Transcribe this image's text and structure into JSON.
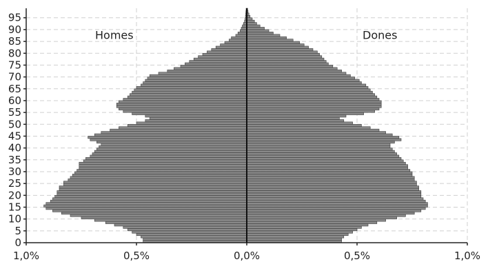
{
  "chart_data": {
    "type": "bar",
    "orientation": "horizontal-pyramid",
    "title": "",
    "xlabel": "",
    "ylabel": "",
    "xlim": [
      -1.0,
      1.0
    ],
    "ylim": [
      0,
      99
    ],
    "x_ticks": [
      "1,0%",
      "0,5%",
      "0,0%",
      "0,5%",
      "1,0%"
    ],
    "y_ticks": [
      "0",
      "5",
      "10",
      "15",
      "20",
      "25",
      "30",
      "35",
      "40",
      "45",
      "50",
      "55",
      "60",
      "65",
      "70",
      "75",
      "80",
      "85",
      "90",
      "95"
    ],
    "grid": true,
    "bar_color": "#8a8a8a",
    "ages": [
      0,
      1,
      2,
      3,
      4,
      5,
      6,
      7,
      8,
      9,
      10,
      11,
      12,
      13,
      14,
      15,
      16,
      17,
      18,
      19,
      20,
      21,
      22,
      23,
      24,
      25,
      26,
      27,
      28,
      29,
      30,
      31,
      32,
      33,
      34,
      35,
      36,
      37,
      38,
      39,
      40,
      41,
      42,
      43,
      44,
      45,
      46,
      47,
      48,
      49,
      50,
      51,
      52,
      53,
      54,
      55,
      56,
      57,
      58,
      59,
      60,
      61,
      62,
      63,
      64,
      65,
      66,
      67,
      68,
      69,
      70,
      71,
      72,
      73,
      74,
      75,
      76,
      77,
      78,
      79,
      80,
      81,
      82,
      83,
      84,
      85,
      86,
      87,
      88,
      89,
      90,
      91,
      92,
      93,
      94,
      95,
      96,
      97,
      98
    ],
    "series": [
      {
        "name": "Homes",
        "values": [
          0.47,
          0.47,
          0.48,
          0.5,
          0.52,
          0.54,
          0.56,
          0.6,
          0.64,
          0.69,
          0.75,
          0.8,
          0.84,
          0.88,
          0.91,
          0.92,
          0.91,
          0.89,
          0.88,
          0.87,
          0.86,
          0.86,
          0.85,
          0.85,
          0.83,
          0.83,
          0.81,
          0.8,
          0.79,
          0.78,
          0.77,
          0.76,
          0.76,
          0.76,
          0.74,
          0.73,
          0.71,
          0.7,
          0.69,
          0.68,
          0.67,
          0.66,
          0.68,
          0.71,
          0.72,
          0.69,
          0.66,
          0.62,
          0.58,
          0.54,
          0.5,
          0.46,
          0.44,
          0.46,
          0.52,
          0.56,
          0.58,
          0.59,
          0.59,
          0.58,
          0.56,
          0.54,
          0.53,
          0.52,
          0.51,
          0.5,
          0.48,
          0.47,
          0.46,
          0.45,
          0.44,
          0.4,
          0.36,
          0.33,
          0.3,
          0.28,
          0.26,
          0.24,
          0.22,
          0.2,
          0.18,
          0.16,
          0.14,
          0.12,
          0.1,
          0.08,
          0.07,
          0.05,
          0.04,
          0.03,
          0.025,
          0.02,
          0.015,
          0.01,
          0.008,
          0.006,
          0.005,
          0.004,
          0.003
        ]
      },
      {
        "name": "Dones",
        "values": [
          0.43,
          0.43,
          0.44,
          0.46,
          0.48,
          0.5,
          0.52,
          0.55,
          0.59,
          0.63,
          0.68,
          0.72,
          0.76,
          0.79,
          0.81,
          0.82,
          0.82,
          0.81,
          0.8,
          0.79,
          0.79,
          0.79,
          0.78,
          0.78,
          0.77,
          0.77,
          0.76,
          0.76,
          0.75,
          0.75,
          0.74,
          0.73,
          0.73,
          0.72,
          0.71,
          0.7,
          0.69,
          0.68,
          0.67,
          0.66,
          0.65,
          0.65,
          0.67,
          0.7,
          0.69,
          0.66,
          0.63,
          0.6,
          0.56,
          0.52,
          0.48,
          0.44,
          0.42,
          0.45,
          0.53,
          0.58,
          0.6,
          0.61,
          0.61,
          0.61,
          0.6,
          0.59,
          0.58,
          0.57,
          0.56,
          0.55,
          0.54,
          0.52,
          0.51,
          0.49,
          0.47,
          0.45,
          0.43,
          0.41,
          0.39,
          0.37,
          0.36,
          0.35,
          0.34,
          0.33,
          0.32,
          0.3,
          0.28,
          0.26,
          0.24,
          0.21,
          0.18,
          0.15,
          0.12,
          0.1,
          0.08,
          0.06,
          0.045,
          0.035,
          0.025,
          0.015,
          0.01,
          0.006,
          0.004
        ]
      }
    ]
  }
}
